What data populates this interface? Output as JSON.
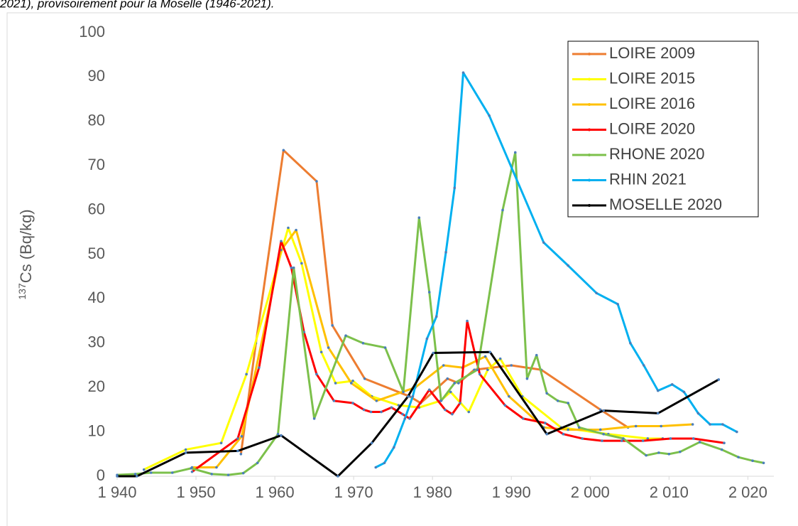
{
  "caption": "2021), provisoirement pour la Moselle (1946-2021).",
  "chart_data": {
    "type": "line",
    "ylabel_sup": "137",
    "ylabel": "Cs (Bq/kg)",
    "xlim": [
      1940,
      2023.3
    ],
    "ylim": [
      0,
      100
    ],
    "xticks": [
      {
        "value": 1940,
        "label": "1 940"
      },
      {
        "value": 1950,
        "label": "1 950"
      },
      {
        "value": 1960,
        "label": "1 960"
      },
      {
        "value": 1970,
        "label": "1 970"
      },
      {
        "value": 1980,
        "label": "1 980"
      },
      {
        "value": 1990,
        "label": "1 990"
      },
      {
        "value": 2000,
        "label": "2 000"
      },
      {
        "value": 2010,
        "label": "2 010"
      },
      {
        "value": 2020,
        "label": "2 020"
      }
    ],
    "yticks": [
      0,
      10,
      20,
      30,
      40,
      50,
      60,
      70,
      80,
      90,
      100
    ],
    "grid": false,
    "legend": "upper right",
    "series": [
      {
        "name": "LOIRE 2009",
        "color": "#ED7D31",
        "x": [
          1955.7,
          1957.6,
          1961.1,
          1965.3,
          1967.3,
          1971.4,
          1977.1,
          1978.5,
          1981.9,
          1983.3,
          1985.3,
          1990,
          1993.8,
          2001.3,
          2004.8
        ],
        "values": [
          5,
          30,
          73.5,
          66.5,
          34,
          22,
          18,
          16.5,
          22,
          21,
          24,
          25,
          24,
          15,
          11
        ]
      },
      {
        "name": "LOIRE 2015",
        "color": "#FFFF00",
        "x": [
          1943.4,
          1948.7,
          1953.2,
          1956.4,
          1961.7,
          1963.4,
          1965.9,
          1967.7,
          1969.9,
          1972.3,
          1975.7,
          1978.3,
          1981,
          1982.3,
          1984.6,
          1987,
          1988.6,
          1991.4,
          1996.3,
          2002.3,
          2007.3,
          2009.2
        ],
        "values": [
          1.5,
          6,
          7.5,
          23,
          56,
          48,
          28,
          21,
          21.5,
          18,
          16,
          15.5,
          17,
          19,
          14.5,
          24,
          26.5,
          18,
          11,
          9.5,
          8.5,
          8.5
        ]
      },
      {
        "name": "LOIRE 2016",
        "color": "#FFC000",
        "x": [
          1949.5,
          1952.6,
          1955.8,
          1960.8,
          1962.7,
          1966.8,
          1969.7,
          1972.9,
          1977.8,
          1981.4,
          1983.8,
          1986.7,
          1989.7,
          1994.1,
          1997.2,
          2001.3,
          2005.8,
          2009,
          2013
        ],
        "values": [
          2,
          2,
          9,
          51,
          55.5,
          29,
          21,
          17,
          20,
          25,
          24.5,
          27,
          18,
          11,
          10.5,
          10.5,
          11.3,
          11.3,
          11.7
        ]
      },
      {
        "name": "LOIRE 2020",
        "color": "#FF0000",
        "x": [
          1949.5,
          1955.3,
          1958,
          1960.8,
          1962.1,
          1963.7,
          1965.3,
          1967.5,
          1969.9,
          1971.3,
          1972.2,
          1973.5,
          1974.8,
          1976.2,
          1977.1,
          1979.6,
          1981.6,
          1982.5,
          1983.5,
          1984.4,
          1986,
          1989.2,
          1991.5,
          1994.3,
          1996.6,
          1999,
          2001.5,
          2004,
          2006.7,
          2010.2,
          2013.1,
          2017
        ],
        "values": [
          1,
          8.5,
          24.5,
          53,
          47,
          32.5,
          23,
          17,
          16.5,
          15,
          14.5,
          14.5,
          15.5,
          14,
          13,
          19.5,
          15,
          14,
          16.5,
          35,
          23,
          16,
          13,
          12,
          9.5,
          8.5,
          8,
          8,
          8,
          8.5,
          8.5,
          7.5
        ]
      },
      {
        "name": "RHONE 2020",
        "color": "#7CC04B",
        "x": [
          1940,
          1942.3,
          1944.3,
          1947,
          1949.4,
          1952,
          1954.1,
          1956,
          1957.8,
          1960.4,
          1962.4,
          1965,
          1969,
          1971.2,
          1974,
          1976.3,
          1978.3,
          1979.6,
          1981.1,
          1982.8,
          1985.7,
          1988.9,
          1990.5,
          1992,
          1993.2,
          1994.5,
          1995.9,
          1997.2,
          1998.6,
          2001.7,
          2004.2,
          2007.1,
          2008.7,
          2010,
          2011.4,
          2013.9,
          2016.7,
          2018.8,
          2020.6,
          2022
        ],
        "values": [
          0.3,
          0.5,
          0.8,
          0.8,
          1.8,
          0.5,
          0.3,
          0.7,
          3,
          9.5,
          47,
          13,
          31.7,
          30,
          29,
          19,
          58.3,
          41.5,
          17,
          21,
          24,
          60,
          73,
          22,
          27.3,
          18.7,
          17,
          16.5,
          11,
          9.5,
          8.5,
          4.7,
          5.3,
          5,
          5.5,
          7.7,
          6,
          4.3,
          3.5,
          3
        ]
      },
      {
        "name": "RHIN 2021",
        "color": "#00B0F0",
        "x": [
          1972.8,
          1973.9,
          1975.1,
          1976.5,
          1977.5,
          1979.3,
          1980.5,
          1981.7,
          1982.8,
          1983.9,
          1987.2,
          1994.1,
          1997.2,
          2000.8,
          2003.5,
          2005.1,
          2006.8,
          2008.6,
          2010.4,
          2011.9,
          2013.7,
          2015.2,
          2016.8,
          2018.6
        ],
        "values": [
          2,
          3,
          6.5,
          13,
          18,
          31,
          36,
          50.5,
          65,
          91,
          81.3,
          52.7,
          47.5,
          41.3,
          38.8,
          30,
          25,
          19.3,
          20.7,
          19,
          14.2,
          11.7,
          11.7,
          10
        ]
      },
      {
        "name": "MOSELLE 2020",
        "color": "#000000",
        "x": [
          1940,
          1942.5,
          1948.7,
          1955.3,
          1960.8,
          1968,
          1972.3,
          1976.9,
          1980.1,
          1987.3,
          1994.5,
          2001.7,
          2008.6,
          2016.3
        ],
        "values": [
          0,
          0,
          5.3,
          5.7,
          9.2,
          0,
          7.5,
          18,
          27.8,
          28,
          9.5,
          14.8,
          14.2,
          21.8
        ]
      }
    ]
  }
}
